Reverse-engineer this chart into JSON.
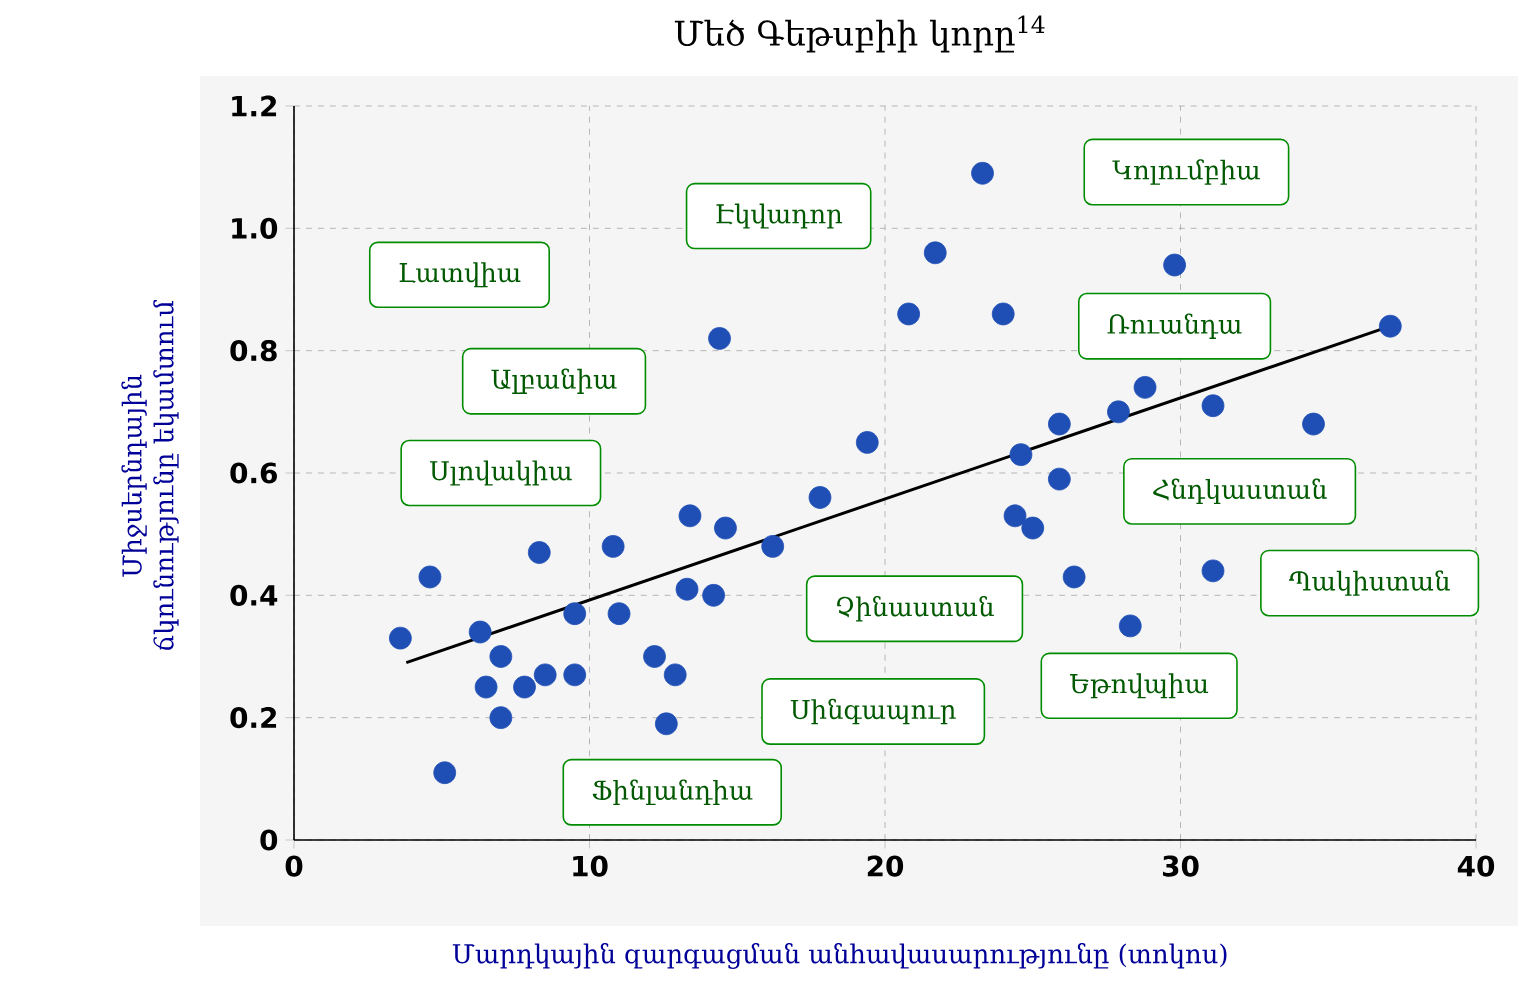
{
  "chart_data": {
    "type": "scatter",
    "title": "Մեծ Գեթսբիի կորը$^{14}$",
    "xlabel": "Մարդկային զարգացման անհավասարությունը (տոկոս)",
    "ylabel": "Միջսերնդային ճկունությունը եկամտում",
    "xlim": [
      0,
      40
    ],
    "xticks": [
      0,
      10,
      20,
      30,
      40
    ],
    "ylim": [
      0,
      1.2
    ],
    "yticks": [
      0,
      0.2,
      0.4,
      0.6,
      0.8,
      {
        "value": 1,
        "label": "1.0"
      },
      1.2
    ],
    "grid": true,
    "series": [
      {
        "marker": "circle",
        "color": "#1f4fb5",
        "x": [
          23.3,
          21.7,
          20.8,
          24.0,
          29.8,
          37.1,
          28.8,
          31.1,
          25.9,
          27.9,
          34.5,
          24.6,
          19.4,
          14.4,
          17.8,
          13.4,
          14.6,
          16.2,
          10.8,
          8.3,
          4.6,
          13.3,
          14.2,
          9.5,
          11.0,
          3.6,
          6.3,
          7.0,
          8.5,
          6.5,
          7.8,
          12.2,
          12.9,
          7.0,
          12.6,
          5.1,
          9.5,
          24.4,
          25.0,
          25.9,
          31.1,
          28.3,
          26.4
        ],
        "values": [
          1.09,
          0.96,
          0.86,
          0.86,
          0.94,
          0.84,
          0.74,
          0.71,
          0.68,
          0.7,
          0.68,
          0.63,
          0.65,
          0.82,
          0.56,
          0.53,
          0.51,
          0.48,
          0.48,
          0.47,
          0.43,
          0.41,
          0.4,
          0.37,
          0.37,
          0.33,
          0.34,
          0.3,
          0.27,
          0.25,
          0.25,
          0.3,
          0.27,
          0.2,
          0.19,
          0.11,
          0.27,
          0.53,
          0.51,
          0.59,
          0.44,
          0.35,
          0.43
        ]
      },
      {
        "type": "line",
        "marker": "none",
        "color": "#000000",
        "x": [
          3.8,
          37.1
        ],
        "values": [
          0.29,
          0.84
        ]
      }
    ],
    "annotations": [
      "Լատվիա",
      "Էկվադոր",
      "Կոլումբիա",
      "Ռուանդա",
      "Ալբանիա",
      "Սլովակիա",
      "Հնդկաստան",
      "Պակիստան",
      "Չինաստան",
      "Եթովպիա",
      "Սինգապուր",
      "Ֆինլանդիա"
    ]
  }
}
